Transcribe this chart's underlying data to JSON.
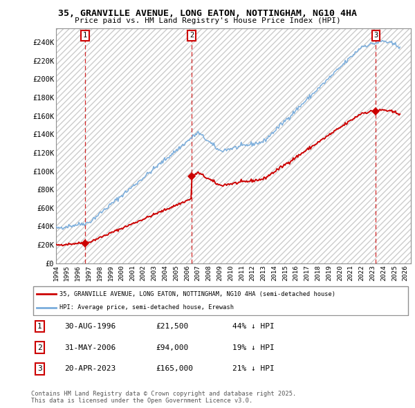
{
  "title": "35, GRANVILLE AVENUE, LONG EATON, NOTTINGHAM, NG10 4HA",
  "subtitle": "Price paid vs. HM Land Registry's House Price Index (HPI)",
  "xlim_start": 1994.0,
  "xlim_end": 2026.5,
  "ylim_min": 0,
  "ylim_max": 255000,
  "yticks": [
    0,
    20000,
    40000,
    60000,
    80000,
    100000,
    120000,
    140000,
    160000,
    180000,
    200000,
    220000,
    240000
  ],
  "ytick_labels": [
    "£0",
    "£20K",
    "£40K",
    "£60K",
    "£80K",
    "£100K",
    "£120K",
    "£140K",
    "£160K",
    "£180K",
    "£200K",
    "£220K",
    "£240K"
  ],
  "xticks": [
    1994,
    1995,
    1996,
    1997,
    1998,
    1999,
    2000,
    2001,
    2002,
    2003,
    2004,
    2005,
    2006,
    2007,
    2008,
    2009,
    2010,
    2011,
    2012,
    2013,
    2014,
    2015,
    2016,
    2017,
    2018,
    2019,
    2020,
    2021,
    2022,
    2023,
    2024,
    2025,
    2026
  ],
  "sale_dates": [
    1996.66,
    2006.41,
    2023.3
  ],
  "sale_prices": [
    21500,
    94000,
    165000
  ],
  "sale_labels": [
    "1",
    "2",
    "3"
  ],
  "hpi_color": "#7aaddc",
  "price_color": "#cc0000",
  "marker_color": "#cc0000",
  "dashed_color": "#cc0000",
  "legend_house_label": "35, GRANVILLE AVENUE, LONG EATON, NOTTINGHAM, NG10 4HA (semi-detached house)",
  "legend_hpi_label": "HPI: Average price, semi-detached house, Erewash",
  "table_rows": [
    [
      "1",
      "30-AUG-1996",
      "£21,500",
      "44% ↓ HPI"
    ],
    [
      "2",
      "31-MAY-2006",
      "£94,000",
      "19% ↓ HPI"
    ],
    [
      "3",
      "20-APR-2023",
      "£165,000",
      "21% ↓ HPI"
    ]
  ],
  "footnote": "Contains HM Land Registry data © Crown copyright and database right 2025.\nThis data is licensed under the Open Government Licence v3.0.",
  "plot_bg_color": "#ffffff",
  "grid_color": "#c0c0c0"
}
